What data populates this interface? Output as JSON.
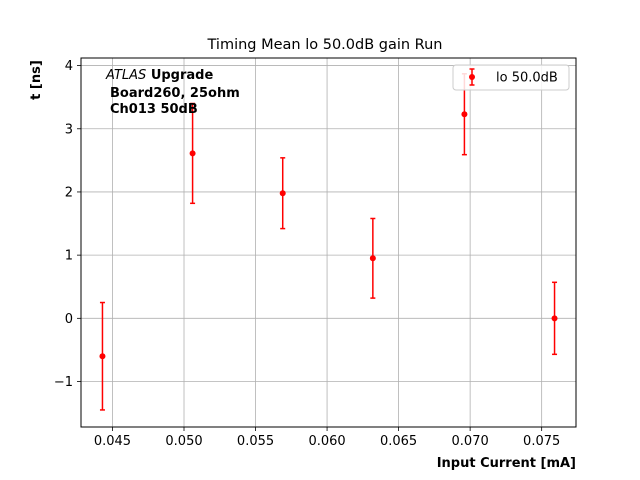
{
  "chart_data": {
    "type": "scatter",
    "title": "Timing Mean lo 50.0dB gain Run",
    "xlabel": "Input Current [mA]",
    "ylabel": "t [ns]",
    "xlim": [
      0.0428,
      0.0774
    ],
    "ylim": [
      -1.72,
      4.12
    ],
    "x_ticks": [
      0.045,
      0.05,
      0.055,
      0.06,
      0.065,
      0.07,
      0.075
    ],
    "x_tick_labels": [
      "0.045",
      "0.050",
      "0.055",
      "0.060",
      "0.065",
      "0.070",
      "0.075"
    ],
    "y_ticks": [
      -1,
      0,
      1,
      2,
      3,
      4
    ],
    "y_tick_labels": [
      "−1",
      "0",
      "1",
      "2",
      "3",
      "4"
    ],
    "grid": true,
    "legend_position": "top-right",
    "series": [
      {
        "name": "lo 50.0dB",
        "color": "#ff0000",
        "marker": "circle",
        "points": [
          {
            "x": 0.0443,
            "y": -0.6,
            "err": 0.85
          },
          {
            "x": 0.0506,
            "y": 2.61,
            "err": 0.79
          },
          {
            "x": 0.0569,
            "y": 1.98,
            "err": 0.56
          },
          {
            "x": 0.0632,
            "y": 0.95,
            "err": 0.63
          },
          {
            "x": 0.0696,
            "y": 3.23,
            "err": 0.64
          },
          {
            "x": 0.0759,
            "y": 0.0,
            "err": 0.57
          }
        ]
      }
    ],
    "annotation": {
      "atlas": "ATLAS",
      "upgrade": "Upgrade",
      "line2": "Board260, 25ohm",
      "line3": "Ch013 50dB"
    }
  }
}
